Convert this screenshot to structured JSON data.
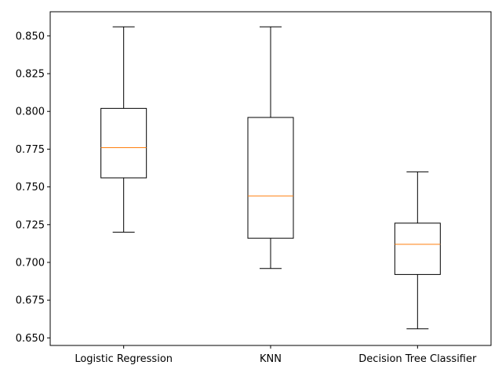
{
  "chart_data": {
    "type": "boxplot",
    "title": "",
    "xlabel": "",
    "ylabel": "",
    "ylim": [
      0.645,
      0.866
    ],
    "y_ticks": [
      "0.650",
      "0.675",
      "0.700",
      "0.725",
      "0.750",
      "0.775",
      "0.800",
      "0.825",
      "0.850"
    ],
    "categories": [
      "Logistic Regression",
      "KNN",
      "Decision Tree Classifier"
    ],
    "boxes": [
      {
        "name": "Logistic Regression",
        "whisker_low": 0.72,
        "q1": 0.756,
        "median": 0.776,
        "q3": 0.802,
        "whisker_high": 0.856
      },
      {
        "name": "KNN",
        "whisker_low": 0.696,
        "q1": 0.716,
        "median": 0.744,
        "q3": 0.796,
        "whisker_high": 0.856
      },
      {
        "name": "Decision Tree Classifier",
        "whisker_low": 0.656,
        "q1": 0.692,
        "median": 0.712,
        "q3": 0.726,
        "whisker_high": 0.76
      }
    ],
    "grid": false,
    "colors": {
      "box": "#000000",
      "median": "#ff7f0e",
      "axis": "#000000"
    }
  }
}
